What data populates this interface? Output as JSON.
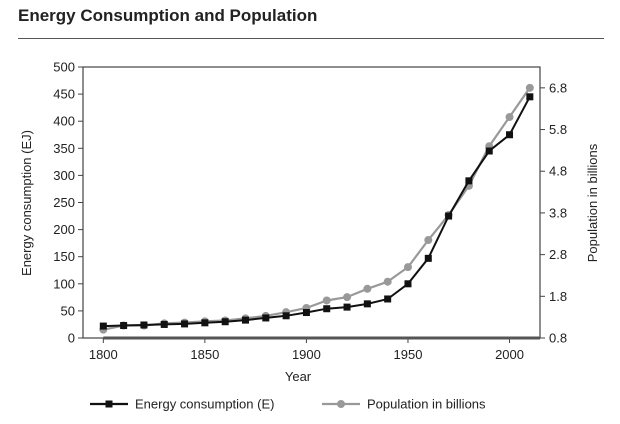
{
  "chart_data": {
    "type": "line",
    "title": "Energy Consumption and Population",
    "xlabel": "Year",
    "ylabel": "Energy consumption (EJ)",
    "y2label": "Population in billions",
    "xlim": [
      1790,
      2015
    ],
    "ylim": [
      0,
      500
    ],
    "y2lim": [
      0.8,
      7.3
    ],
    "x_ticks": [
      "1800",
      "1850",
      "1900",
      "1950",
      "2000"
    ],
    "y_ticks": [
      "0",
      "50",
      "100",
      "150",
      "200",
      "250",
      "300",
      "350",
      "400",
      "450",
      "500"
    ],
    "y2_ticks": [
      "0.8",
      "1.8",
      "2.8",
      "3.8",
      "4.8",
      "5.8",
      "6.8"
    ],
    "grid": false,
    "legend": "bottom",
    "x": [
      1800,
      1810,
      1820,
      1830,
      1840,
      1850,
      1860,
      1870,
      1880,
      1890,
      1900,
      1910,
      1920,
      1930,
      1940,
      1950,
      1960,
      1970,
      1980,
      1990,
      2000,
      2010
    ],
    "series": [
      {
        "name": "Energy consumption (E)",
        "axis": "left",
        "color": "#111111",
        "marker": "square",
        "values": [
          22,
          23,
          24,
          25,
          26,
          28,
          30,
          33,
          37,
          41,
          47,
          54,
          57,
          63,
          72,
          100,
          147,
          225,
          290,
          345,
          375,
          445
        ]
      },
      {
        "name": "Population in billions",
        "axis": "right",
        "color": "#999999",
        "marker": "circle",
        "values": [
          1.0,
          1.1,
          1.1,
          1.15,
          1.17,
          1.2,
          1.22,
          1.27,
          1.33,
          1.42,
          1.52,
          1.7,
          1.78,
          1.98,
          2.15,
          2.5,
          3.15,
          3.75,
          4.45,
          5.4,
          6.1,
          6.8
        ]
      }
    ]
  }
}
